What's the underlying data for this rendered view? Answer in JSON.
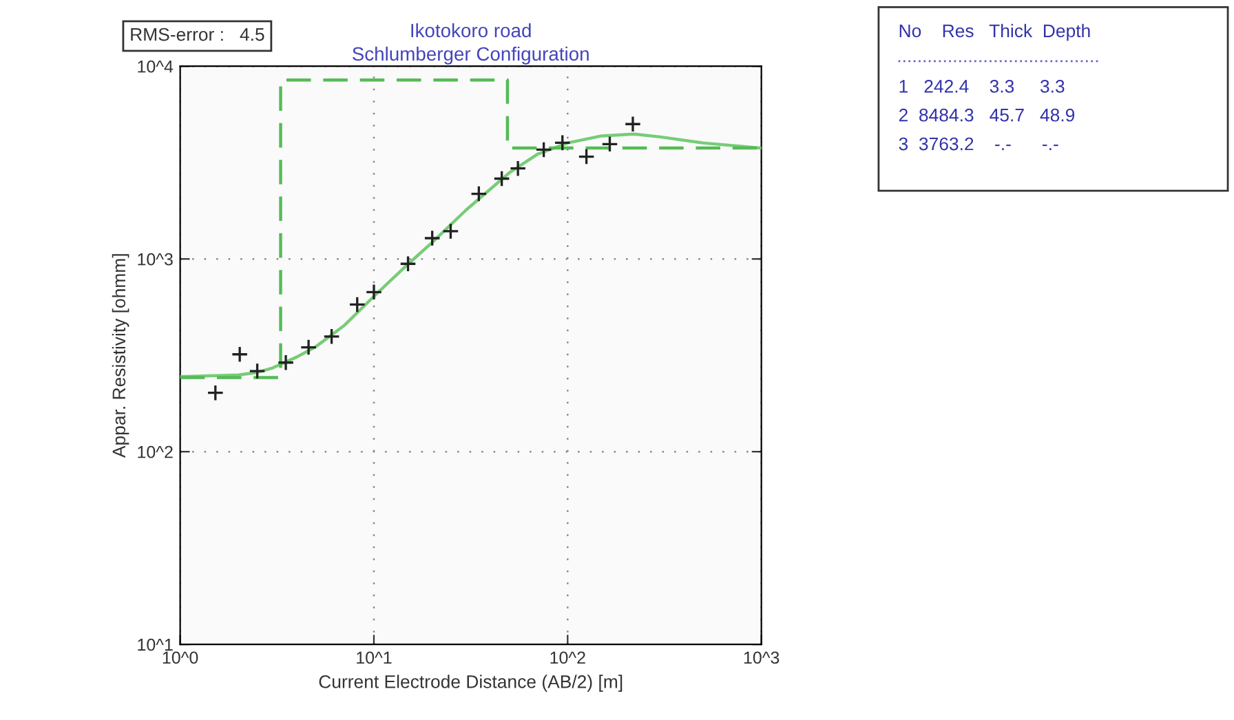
{
  "chart_data": {
    "type": "scatter",
    "title": "Ikotokoro road\nSchlumberger Configuration",
    "xlabel": "Current Electrode Distance (AB/2) [m]",
    "ylabel": "Appar. Resistivity [ohmm]",
    "log": "xy",
    "grid": true,
    "legend": false,
    "xlim": [
      1,
      1000
    ],
    "ylim": [
      10,
      10000
    ],
    "xticks": [
      {
        "value": 1,
        "label": "10^0"
      },
      {
        "value": 10,
        "label": "10^1"
      },
      {
        "value": 100,
        "label": "10^2"
      },
      {
        "value": 1000,
        "label": "10^3"
      }
    ],
    "yticks": [
      {
        "value": 10,
        "label": "10^1"
      },
      {
        "value": 100,
        "label": "10^2"
      },
      {
        "value": 1000,
        "label": "10^3"
      },
      {
        "value": 10000,
        "label": "10^4"
      }
    ],
    "series": [
      {
        "marker": "cross",
        "color": "#222222",
        "x": [
          1.52,
          2.03,
          2.5,
          3.51,
          4.6,
          6.05,
          8.2,
          10,
          15,
          20,
          24.9,
          34.8,
          45.7,
          55.4,
          75.3,
          94,
          125,
          165,
          217
        ],
        "values": [
          202,
          320,
          262,
          290,
          348,
          396,
          580,
          673,
          944,
          1282,
          1393,
          2178,
          2612,
          2950,
          3690,
          4009,
          3396,
          3946,
          5012
        ]
      },
      {
        "type": "line",
        "line_style": "solid",
        "color": "#77cc77",
        "x": [
          1,
          2,
          2.5,
          3,
          4,
          5,
          7,
          10,
          15,
          20,
          30,
          50,
          70,
          100,
          150,
          220,
          300,
          500,
          1000
        ],
        "values": [
          245,
          250,
          258,
          272,
          310,
          350,
          450,
          640,
          940,
          1220,
          1800,
          2800,
          3500,
          4000,
          4350,
          4450,
          4300,
          4000,
          3760
        ]
      },
      {
        "type": "step",
        "line_style": "dashed",
        "color": "#55bb55",
        "x": [
          1,
          3.3,
          48.9,
          1000
        ],
        "values": [
          242.4,
          8484.3,
          3763.2,
          3763.2
        ]
      }
    ],
    "annotations": [
      "RMS-error :   4.5",
      "No    Res   Thick  Depth",
      "1   242.4    3.3     3.3",
      "2  8484.3   45.7   48.9",
      "3  3763.2    -.-      -.-"
    ]
  }
}
